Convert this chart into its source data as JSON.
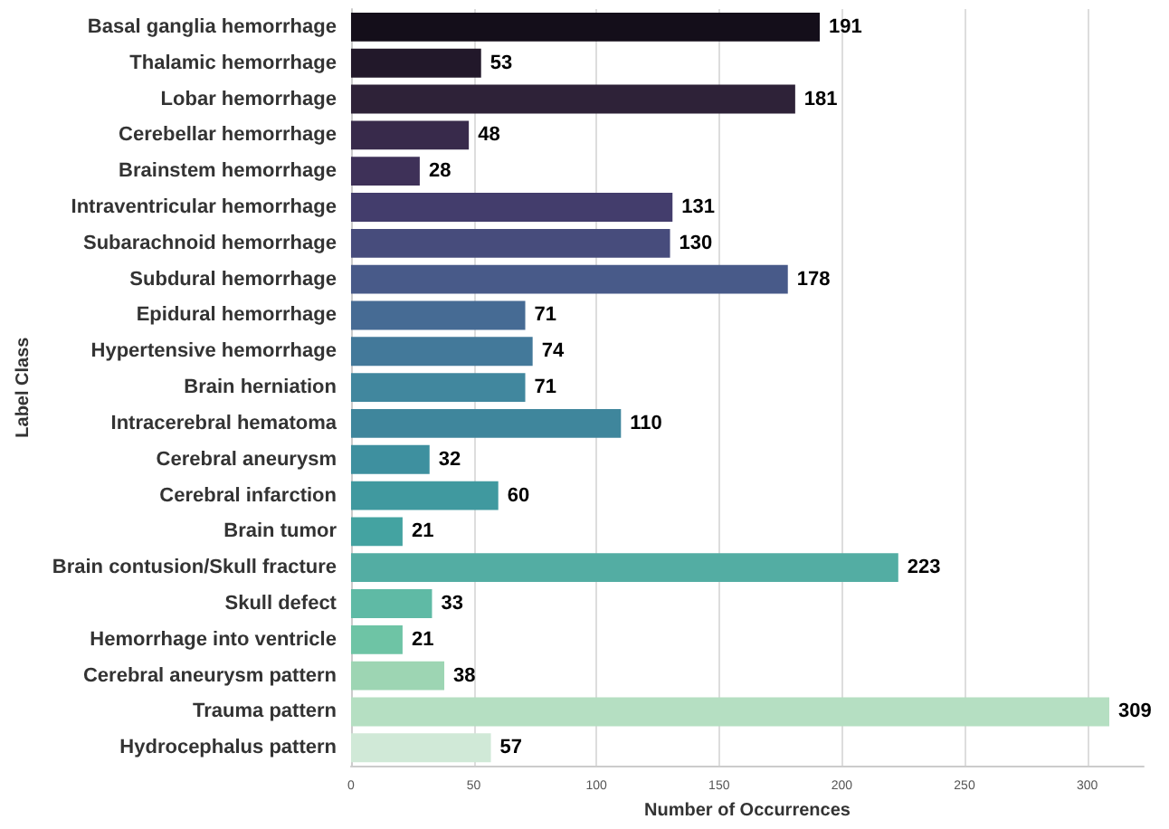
{
  "chart_data": {
    "type": "bar",
    "orientation": "horizontal",
    "xlabel": "Number of Occurrences",
    "ylabel": "Label Class",
    "categories": [
      "Basal ganglia hemorrhage",
      "Thalamic hemorrhage",
      "Lobar hemorrhage",
      "Cerebellar hemorrhage",
      "Brainstem hemorrhage",
      "Intraventricular hemorrhage",
      "Subarachnoid hemorrhage",
      "Subdural hemorrhage",
      "Epidural hemorrhage",
      "Hypertensive hemorrhage",
      "Brain herniation",
      "Intracerebral hematoma",
      "Cerebral aneurysm",
      "Cerebral infarction",
      "Brain tumor",
      "Brain contusion/Skull fracture",
      "Skull defect",
      "Hemorrhage into ventricle",
      "Cerebral aneurysm pattern",
      "Trauma pattern",
      "Hydrocephalus pattern"
    ],
    "values": [
      191,
      53,
      181,
      48,
      28,
      131,
      130,
      178,
      71,
      74,
      71,
      110,
      32,
      60,
      21,
      223,
      33,
      21,
      38,
      309,
      57
    ],
    "colors": [
      "#140e1a",
      "#22182a",
      "#2e2238",
      "#382a4b",
      "#3e3158",
      "#433d6c",
      "#474c7c",
      "#485a89",
      "#466b94",
      "#43799a",
      "#41879e",
      "#3f869c",
      "#3e909f",
      "#40999f",
      "#44a3a1",
      "#53ada3",
      "#5fbaa5",
      "#6ec4a5",
      "#9dd5b3",
      "#b5dfc2",
      "#d0e9d7"
    ],
    "xlim": [
      0,
      323
    ],
    "xticks": [
      0,
      50,
      100,
      150,
      200,
      250,
      300
    ],
    "grid": "x",
    "data_labels": true
  }
}
